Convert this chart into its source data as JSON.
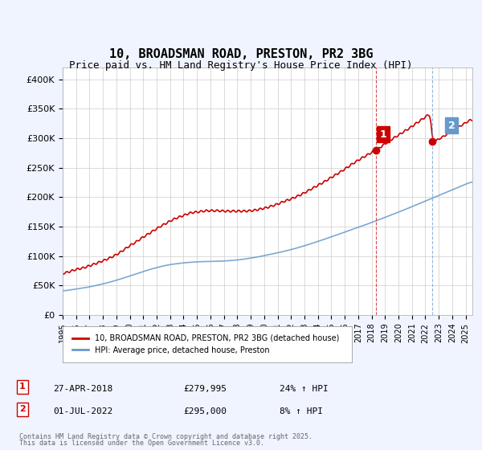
{
  "title_line1": "10, BROADSMAN ROAD, PRESTON, PR2 3BG",
  "title_line2": "Price paid vs. HM Land Registry's House Price Index (HPI)",
  "ylabel": "",
  "ylim": [
    0,
    420000
  ],
  "yticks": [
    0,
    50000,
    100000,
    150000,
    200000,
    250000,
    300000,
    350000,
    400000
  ],
  "ytick_labels": [
    "£0",
    "£50K",
    "£100K",
    "£150K",
    "£200K",
    "£250K",
    "£300K",
    "£350K",
    "£400K"
  ],
  "x_start_year": 1995.0,
  "x_end_year": 2025.5,
  "hpi_color": "#6699cc",
  "price_color": "#cc0000",
  "marker1_date": 2018.32,
  "marker1_price": 279995,
  "marker1_label": "27-APR-2018",
  "marker1_pct": "24% ↑ HPI",
  "marker2_date": 2022.5,
  "marker2_price": 295000,
  "marker2_label": "01-JUL-2022",
  "marker2_pct": "8% ↑ HPI",
  "legend_label1": "10, BROADSMAN ROAD, PRESTON, PR2 3BG (detached house)",
  "legend_label2": "HPI: Average price, detached house, Preston",
  "footer_line1": "Contains HM Land Registry data © Crown copyright and database right 2025.",
  "footer_line2": "This data is licensed under the Open Government Licence v3.0.",
  "background_color": "#f0f4ff",
  "plot_bg_color": "#ffffff"
}
